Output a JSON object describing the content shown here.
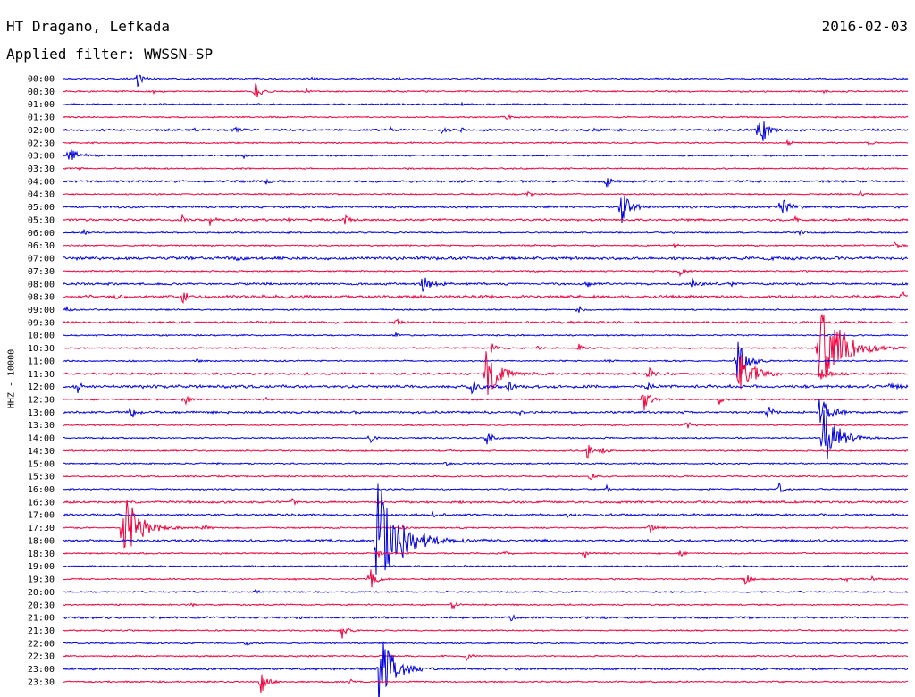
{
  "header": {
    "station": "HT Dragano, Lefkada",
    "filter": "Applied filter: WWSSN-SP",
    "date": "2016-02-03"
  },
  "colors": {
    "even": "#0000e0",
    "odd": "#f0003c"
  },
  "chart_data": {
    "type": "line",
    "title": "HT Dragano, Lefkada",
    "subtitle": "Applied filter: WWSSN-SP",
    "date": "2016-02-03",
    "ylabel": "HHZ - 10000",
    "x_unit": "minutes",
    "xlim": [
      0,
      30
    ],
    "rows": [
      "00:00",
      "00:30",
      "01:00",
      "01:30",
      "02:00",
      "02:30",
      "03:00",
      "03:30",
      "04:00",
      "04:30",
      "05:00",
      "05:30",
      "06:00",
      "06:30",
      "07:00",
      "07:30",
      "08:00",
      "08:30",
      "09:00",
      "09:30",
      "10:00",
      "10:30",
      "11:00",
      "11:30",
      "12:00",
      "12:30",
      "13:00",
      "13:30",
      "14:00",
      "14:30",
      "15:00",
      "15:30",
      "16:00",
      "16:30",
      "17:00",
      "17:30",
      "18:00",
      "18:30",
      "19:00",
      "19:30",
      "20:00",
      "20:30",
      "21:00",
      "21:30",
      "22:00",
      "22:30",
      "23:00",
      "23:30"
    ],
    "noise": [
      1,
      1,
      1,
      1,
      1.5,
      1,
      1,
      1,
      1.5,
      1,
      1.5,
      1.5,
      1,
      1,
      2,
      1,
      1.5,
      2,
      1,
      1.5,
      1,
      1,
      1,
      1.5,
      2,
      1,
      1.5,
      1,
      1,
      1,
      1,
      1,
      1,
      1.5,
      1.5,
      1,
      1.5,
      1,
      1,
      1,
      1,
      1,
      1.5,
      1,
      1,
      1,
      1.5,
      1
    ],
    "events": [
      [
        0,
        2.6,
        10
      ],
      [
        0,
        8.8,
        2
      ],
      [
        0,
        11.8,
        2
      ],
      [
        1,
        3.2,
        2
      ],
      [
        1,
        6.8,
        11
      ],
      [
        1,
        8.6,
        3
      ],
      [
        1,
        27.0,
        2
      ],
      [
        2,
        14.1,
        3
      ],
      [
        3,
        15.7,
        4
      ],
      [
        4,
        4.6,
        3
      ],
      [
        4,
        6.1,
        4
      ],
      [
        4,
        11.6,
        3
      ],
      [
        4,
        13.4,
        4
      ],
      [
        4,
        14.1,
        3
      ],
      [
        4,
        18.8,
        3
      ],
      [
        4,
        24.7,
        22
      ],
      [
        5,
        25.7,
        4
      ],
      [
        5,
        28.6,
        3
      ],
      [
        6,
        0.2,
        16
      ],
      [
        6,
        6.4,
        3
      ],
      [
        7,
        0.5,
        3
      ],
      [
        8,
        7.2,
        5
      ],
      [
        8,
        19.3,
        6
      ],
      [
        9,
        16.5,
        4
      ],
      [
        9,
        28.3,
        5
      ],
      [
        10,
        19.8,
        22
      ],
      [
        10,
        25.5,
        16
      ],
      [
        11,
        4.2,
        5
      ],
      [
        11,
        5.2,
        7
      ],
      [
        11,
        7.9,
        3
      ],
      [
        11,
        10.0,
        5
      ],
      [
        11,
        26.0,
        4
      ],
      [
        12,
        0.7,
        4
      ],
      [
        12,
        26.2,
        6
      ],
      [
        13,
        16.7,
        3
      ],
      [
        13,
        21.6,
        5
      ],
      [
        13,
        29.5,
        4
      ],
      [
        14,
        6.2,
        3
      ],
      [
        14,
        25.1,
        3
      ],
      [
        15,
        21.9,
        5
      ],
      [
        16,
        12.7,
        16
      ],
      [
        16,
        18.6,
        4
      ],
      [
        16,
        22.3,
        7
      ],
      [
        16,
        23.7,
        5
      ],
      [
        17,
        4.2,
        8
      ],
      [
        17,
        1.8,
        4
      ],
      [
        17,
        29.8,
        6
      ],
      [
        18,
        0.1,
        5
      ],
      [
        18,
        18.3,
        6
      ],
      [
        19,
        11.8,
        5
      ],
      [
        20,
        11.8,
        3
      ],
      [
        21,
        15.2,
        6
      ],
      [
        21,
        16.8,
        4
      ],
      [
        21,
        18.3,
        5
      ],
      [
        21,
        26.8,
        70
      ],
      [
        22,
        4.7,
        3
      ],
      [
        22,
        19.3,
        3
      ],
      [
        22,
        23.9,
        28
      ],
      [
        23,
        15.0,
        34
      ],
      [
        23,
        20.8,
        10
      ],
      [
        23,
        24.0,
        34
      ],
      [
        23,
        26.9,
        14
      ],
      [
        24,
        0.5,
        6
      ],
      [
        24,
        14.5,
        10
      ],
      [
        24,
        15.8,
        6
      ],
      [
        24,
        20.7,
        5
      ],
      [
        24,
        29.4,
        6
      ],
      [
        25,
        4.3,
        8
      ],
      [
        25,
        7.2,
        3
      ],
      [
        25,
        20.6,
        18
      ],
      [
        25,
        23.3,
        5
      ],
      [
        26,
        2.4,
        8
      ],
      [
        26,
        16.2,
        4
      ],
      [
        26,
        25.0,
        9
      ],
      [
        26,
        26.8,
        26
      ],
      [
        27,
        22.1,
        6
      ],
      [
        28,
        10.9,
        5
      ],
      [
        28,
        15.0,
        10
      ],
      [
        28,
        27.0,
        42
      ],
      [
        29,
        18.6,
        10
      ],
      [
        29,
        19.1,
        6
      ],
      [
        30,
        13.6,
        3
      ],
      [
        31,
        18.7,
        6
      ],
      [
        32,
        19.3,
        5
      ],
      [
        32,
        25.4,
        8
      ],
      [
        33,
        8.1,
        4
      ],
      [
        34,
        13.1,
        3
      ],
      [
        34,
        17.9,
        3
      ],
      [
        35,
        2.1,
        48
      ],
      [
        35,
        5.0,
        4
      ],
      [
        35,
        12.0,
        5
      ],
      [
        35,
        20.8,
        8
      ],
      [
        36,
        11.1,
        75
      ],
      [
        37,
        11.2,
        4
      ],
      [
        37,
        15.7,
        3
      ],
      [
        37,
        18.5,
        6
      ],
      [
        37,
        21.9,
        5
      ],
      [
        38,
        23.4,
        3
      ],
      [
        39,
        10.9,
        12
      ],
      [
        39,
        24.2,
        8
      ],
      [
        39,
        27.8,
        4
      ],
      [
        39,
        28.7,
        3
      ],
      [
        40,
        6.8,
        3
      ],
      [
        41,
        4.5,
        4
      ],
      [
        41,
        13.8,
        5
      ],
      [
        42,
        15.9,
        4
      ],
      [
        43,
        9.9,
        9
      ],
      [
        44,
        6.5,
        3
      ],
      [
        45,
        14.3,
        6
      ],
      [
        46,
        11.2,
        45
      ],
      [
        47,
        7.0,
        14
      ],
      [
        47,
        10.2,
        4
      ]
    ]
  }
}
